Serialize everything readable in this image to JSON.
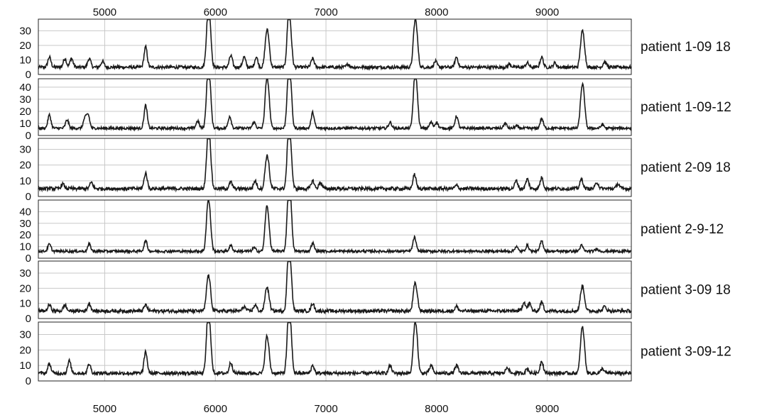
{
  "chart_data": {
    "type": "line",
    "x_ticks": [
      5000,
      6000,
      7000,
      8000,
      9000
    ],
    "x_ticks_top": [
      "5000",
      "6000",
      "7000",
      "8000",
      "9000"
    ],
    "x_ticks_bottom": [
      "5000",
      "6000",
      "7000",
      "8000",
      "9000"
    ],
    "xlim": [
      4400,
      9760
    ],
    "grid": true,
    "panels": [
      {
        "label": "patient 1-09 18",
        "ylim": [
          0,
          38
        ],
        "y_ticks": [
          0,
          10,
          20,
          30
        ],
        "baseline": 5,
        "peaks": [
          {
            "x": 4500,
            "y": 12
          },
          {
            "x": 4640,
            "y": 11
          },
          {
            "x": 4700,
            "y": 11
          },
          {
            "x": 4860,
            "y": 11
          },
          {
            "x": 4980,
            "y": 9
          },
          {
            "x": 5370,
            "y": 19
          },
          {
            "x": 5930,
            "y": 33
          },
          {
            "x": 5950,
            "y": 31
          },
          {
            "x": 6140,
            "y": 13
          },
          {
            "x": 6260,
            "y": 12
          },
          {
            "x": 6370,
            "y": 12
          },
          {
            "x": 6460,
            "y": 23
          },
          {
            "x": 6480,
            "y": 20
          },
          {
            "x": 6660,
            "y": 35
          },
          {
            "x": 6680,
            "y": 24
          },
          {
            "x": 6880,
            "y": 11
          },
          {
            "x": 7200,
            "y": 7
          },
          {
            "x": 7800,
            "y": 28
          },
          {
            "x": 7820,
            "y": 24
          },
          {
            "x": 7990,
            "y": 9
          },
          {
            "x": 8180,
            "y": 12
          },
          {
            "x": 8660,
            "y": 7
          },
          {
            "x": 8820,
            "y": 8
          },
          {
            "x": 8950,
            "y": 12
          },
          {
            "x": 9070,
            "y": 8
          },
          {
            "x": 9310,
            "y": 22
          },
          {
            "x": 9330,
            "y": 20
          },
          {
            "x": 9520,
            "y": 9
          }
        ]
      },
      {
        "label": "patient 1-09-12",
        "ylim": [
          0,
          47
        ],
        "y_ticks": [
          0,
          10,
          20,
          30,
          40
        ],
        "baseline": 6,
        "peaks": [
          {
            "x": 4500,
            "y": 17
          },
          {
            "x": 4660,
            "y": 13
          },
          {
            "x": 4820,
            "y": 14
          },
          {
            "x": 4850,
            "y": 17
          },
          {
            "x": 5370,
            "y": 25
          },
          {
            "x": 5840,
            "y": 12
          },
          {
            "x": 5930,
            "y": 42
          },
          {
            "x": 5950,
            "y": 36
          },
          {
            "x": 6130,
            "y": 16
          },
          {
            "x": 6350,
            "y": 11
          },
          {
            "x": 6460,
            "y": 36
          },
          {
            "x": 6480,
            "y": 30
          },
          {
            "x": 6660,
            "y": 45
          },
          {
            "x": 6680,
            "y": 36
          },
          {
            "x": 6880,
            "y": 19
          },
          {
            "x": 7580,
            "y": 11
          },
          {
            "x": 7800,
            "y": 39
          },
          {
            "x": 7820,
            "y": 32
          },
          {
            "x": 7950,
            "y": 11
          },
          {
            "x": 8000,
            "y": 11
          },
          {
            "x": 8180,
            "y": 16
          },
          {
            "x": 8620,
            "y": 10
          },
          {
            "x": 8720,
            "y": 8
          },
          {
            "x": 8950,
            "y": 14
          },
          {
            "x": 9310,
            "y": 31
          },
          {
            "x": 9330,
            "y": 28
          },
          {
            "x": 9500,
            "y": 9
          }
        ]
      },
      {
        "label": "patient 2-09 18",
        "ylim": [
          0,
          37
        ],
        "y_ticks": [
          0,
          10,
          20,
          30
        ],
        "baseline": 5,
        "peaks": [
          {
            "x": 4620,
            "y": 8
          },
          {
            "x": 4880,
            "y": 9
          },
          {
            "x": 5370,
            "y": 15
          },
          {
            "x": 5930,
            "y": 29
          },
          {
            "x": 5950,
            "y": 29
          },
          {
            "x": 6140,
            "y": 9
          },
          {
            "x": 6360,
            "y": 10
          },
          {
            "x": 6460,
            "y": 20
          },
          {
            "x": 6480,
            "y": 17
          },
          {
            "x": 6660,
            "y": 35
          },
          {
            "x": 6680,
            "y": 27
          },
          {
            "x": 6880,
            "y": 10
          },
          {
            "x": 6950,
            "y": 9
          },
          {
            "x": 7800,
            "y": 14
          },
          {
            "x": 8180,
            "y": 7
          },
          {
            "x": 8720,
            "y": 10
          },
          {
            "x": 8820,
            "y": 11
          },
          {
            "x": 8950,
            "y": 12
          },
          {
            "x": 9310,
            "y": 11
          },
          {
            "x": 9450,
            "y": 9
          },
          {
            "x": 9640,
            "y": 8
          }
        ]
      },
      {
        "label": "patient 2-9-12",
        "ylim": [
          0,
          50
        ],
        "y_ticks": [
          0,
          10,
          20,
          30,
          40
        ],
        "baseline": 6,
        "peaks": [
          {
            "x": 4500,
            "y": 12
          },
          {
            "x": 4860,
            "y": 12
          },
          {
            "x": 5370,
            "y": 15
          },
          {
            "x": 5930,
            "y": 38
          },
          {
            "x": 5950,
            "y": 31
          },
          {
            "x": 6140,
            "y": 11
          },
          {
            "x": 6350,
            "y": 9
          },
          {
            "x": 6460,
            "y": 35
          },
          {
            "x": 6480,
            "y": 26
          },
          {
            "x": 6660,
            "y": 49
          },
          {
            "x": 6680,
            "y": 40
          },
          {
            "x": 6880,
            "y": 13
          },
          {
            "x": 7800,
            "y": 18
          },
          {
            "x": 8720,
            "y": 10
          },
          {
            "x": 8820,
            "y": 11
          },
          {
            "x": 8950,
            "y": 15
          },
          {
            "x": 9310,
            "y": 11
          },
          {
            "x": 9450,
            "y": 8
          }
        ]
      },
      {
        "label": "patient 3-09 18",
        "ylim": [
          0,
          38
        ],
        "y_ticks": [
          0,
          10,
          20,
          30
        ],
        "baseline": 5,
        "peaks": [
          {
            "x": 4500,
            "y": 9
          },
          {
            "x": 4640,
            "y": 9
          },
          {
            "x": 4860,
            "y": 10
          },
          {
            "x": 5370,
            "y": 9
          },
          {
            "x": 5930,
            "y": 22
          },
          {
            "x": 5950,
            "y": 18
          },
          {
            "x": 6260,
            "y": 8
          },
          {
            "x": 6360,
            "y": 9
          },
          {
            "x": 6460,
            "y": 17
          },
          {
            "x": 6480,
            "y": 13
          },
          {
            "x": 6660,
            "y": 37
          },
          {
            "x": 6680,
            "y": 28
          },
          {
            "x": 6880,
            "y": 10
          },
          {
            "x": 7800,
            "y": 19
          },
          {
            "x": 7820,
            "y": 14
          },
          {
            "x": 8180,
            "y": 8
          },
          {
            "x": 8790,
            "y": 11
          },
          {
            "x": 8840,
            "y": 10
          },
          {
            "x": 8950,
            "y": 11
          },
          {
            "x": 9310,
            "y": 17
          },
          {
            "x": 9330,
            "y": 14
          },
          {
            "x": 9520,
            "y": 8
          }
        ]
      },
      {
        "label": "patient 3-09-12",
        "ylim": [
          0,
          38
        ],
        "y_ticks": [
          0,
          10,
          20,
          30
        ],
        "baseline": 5,
        "peaks": [
          {
            "x": 4500,
            "y": 11
          },
          {
            "x": 4680,
            "y": 13
          },
          {
            "x": 4860,
            "y": 11
          },
          {
            "x": 5370,
            "y": 19
          },
          {
            "x": 5930,
            "y": 34
          },
          {
            "x": 5950,
            "y": 29
          },
          {
            "x": 6140,
            "y": 12
          },
          {
            "x": 6460,
            "y": 23
          },
          {
            "x": 6480,
            "y": 17
          },
          {
            "x": 6660,
            "y": 36
          },
          {
            "x": 6680,
            "y": 29
          },
          {
            "x": 6880,
            "y": 10
          },
          {
            "x": 7580,
            "y": 10
          },
          {
            "x": 7800,
            "y": 29
          },
          {
            "x": 7820,
            "y": 24
          },
          {
            "x": 7950,
            "y": 10
          },
          {
            "x": 8180,
            "y": 10
          },
          {
            "x": 8640,
            "y": 9
          },
          {
            "x": 8820,
            "y": 8
          },
          {
            "x": 8950,
            "y": 13
          },
          {
            "x": 9310,
            "y": 26
          },
          {
            "x": 9330,
            "y": 22
          },
          {
            "x": 9500,
            "y": 8
          }
        ]
      }
    ]
  }
}
